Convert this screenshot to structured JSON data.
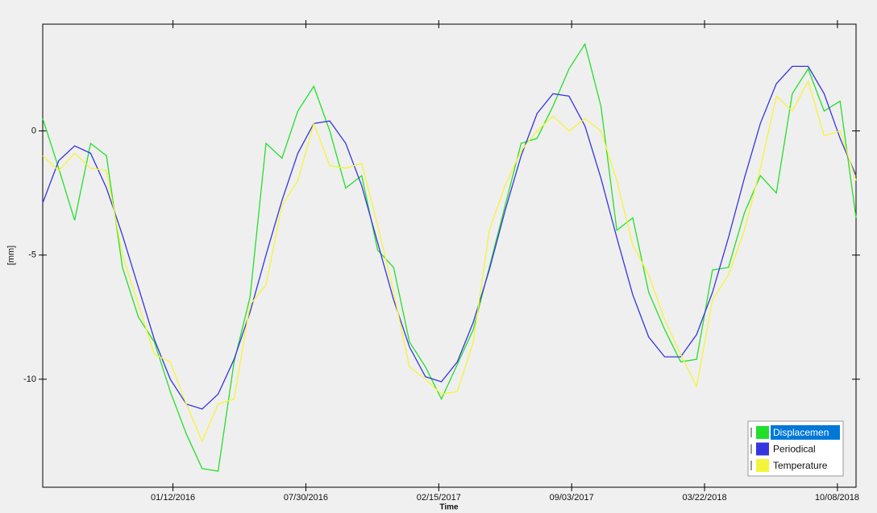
{
  "chart_data": {
    "type": "line",
    "ylabel": "[mm]",
    "xlabel": "Time",
    "legend": "lower right",
    "legend_selected": 0,
    "xlim": [
      "2015-06-30",
      "2018-11-05"
    ],
    "xticks": [
      {
        "value": "2016-01-12",
        "label": "01/12/2016"
      },
      {
        "value": "2016-07-30",
        "label": "07/30/2016"
      },
      {
        "value": "2017-02-15",
        "label": "02/15/2017"
      },
      {
        "value": "2017-09-03",
        "label": "09/03/2017"
      },
      {
        "value": "2018-03-22",
        "label": "03/22/2018"
      },
      {
        "value": "2018-10-08",
        "label": "10/08/2018"
      }
    ],
    "ylim": [
      -14.35,
      4.3
    ],
    "yticks": [
      0,
      -5,
      -10
    ],
    "x": [
      "2015-06-30",
      "2015-07-24",
      "2015-08-17",
      "2015-09-10",
      "2015-10-04",
      "2015-10-28",
      "2015-11-21",
      "2015-12-15",
      "2016-01-08",
      "2016-02-01",
      "2016-02-25",
      "2016-03-20",
      "2016-04-13",
      "2016-05-07",
      "2016-05-31",
      "2016-06-24",
      "2016-07-18",
      "2016-08-11",
      "2016-09-04",
      "2016-09-28",
      "2016-10-22",
      "2016-11-15",
      "2016-12-09",
      "2017-01-02",
      "2017-01-26",
      "2017-02-19",
      "2017-03-15",
      "2017-04-08",
      "2017-05-02",
      "2017-05-26",
      "2017-06-19",
      "2017-07-13",
      "2017-08-06",
      "2017-08-30",
      "2017-09-23",
      "2017-10-17",
      "2017-11-10",
      "2017-12-04",
      "2017-12-28",
      "2018-01-21",
      "2018-02-14",
      "2018-03-10",
      "2018-04-03",
      "2018-04-27",
      "2018-05-21",
      "2018-06-14",
      "2018-07-08",
      "2018-08-01",
      "2018-08-25",
      "2018-09-18",
      "2018-10-12",
      "2018-11-05"
    ],
    "series": [
      {
        "name": "Displacemen",
        "color": "#22e02a",
        "values": [
          0.5,
          -1.5,
          -3.6,
          -0.5,
          -1.0,
          -5.5,
          -7.5,
          -8.5,
          -10.5,
          -12.2,
          -13.6,
          -13.7,
          -9.3,
          -6.7,
          -0.5,
          -1.1,
          0.8,
          1.8,
          0.0,
          -2.3,
          -1.8,
          -4.8,
          -5.5,
          -8.5,
          -9.5,
          -10.8,
          -9.4,
          -8.0,
          -5.5,
          -3.0,
          -0.5,
          -0.3,
          1.0,
          2.5,
          3.5,
          1.0,
          -4.0,
          -3.5,
          -6.5,
          -8.0,
          -9.3,
          -9.2,
          -5.6,
          -5.5,
          -3.3,
          -1.8,
          -2.5,
          1.5,
          2.5,
          0.8,
          1.2,
          -3.5
        ]
      },
      {
        "name": "Periodical",
        "color": "#3636e0",
        "values": [
          -2.9,
          -1.2,
          -0.6,
          -0.9,
          -2.3,
          -4.2,
          -6.3,
          -8.4,
          -10.0,
          -11.0,
          -11.2,
          -10.6,
          -9.2,
          -7.3,
          -5.0,
          -2.8,
          -0.9,
          0.3,
          0.4,
          -0.5,
          -2.2,
          -4.5,
          -6.8,
          -8.7,
          -9.9,
          -10.1,
          -9.3,
          -7.7,
          -5.6,
          -3.2,
          -1.0,
          0.7,
          1.5,
          1.4,
          0.2,
          -1.9,
          -4.3,
          -6.6,
          -8.3,
          -9.1,
          -9.1,
          -8.2,
          -6.5,
          -4.3,
          -1.9,
          0.3,
          1.9,
          2.6,
          2.6,
          1.5,
          -0.3,
          -1.8
        ]
      },
      {
        "name": "Temperature",
        "color": "#f4f43a",
        "values": [
          -1.0,
          -1.6,
          -0.9,
          -1.5,
          -1.6,
          -5.0,
          -7.0,
          -9.0,
          -9.3,
          -11.0,
          -12.5,
          -11.0,
          -10.8,
          -7.0,
          -6.2,
          -3.0,
          -2.0,
          0.3,
          -1.4,
          -1.5,
          -1.3,
          -3.8,
          -6.5,
          -9.5,
          -10.0,
          -10.6,
          -10.5,
          -8.5,
          -4.0,
          -2.2,
          -0.8,
          0.0,
          0.6,
          0.0,
          0.5,
          0.0,
          -2.0,
          -4.6,
          -5.8,
          -7.6,
          -9.0,
          -10.3,
          -6.8,
          -5.8,
          -4.0,
          -1.5,
          1.4,
          0.8,
          2.0,
          -0.2,
          0.0,
          -2.0
        ]
      }
    ]
  }
}
